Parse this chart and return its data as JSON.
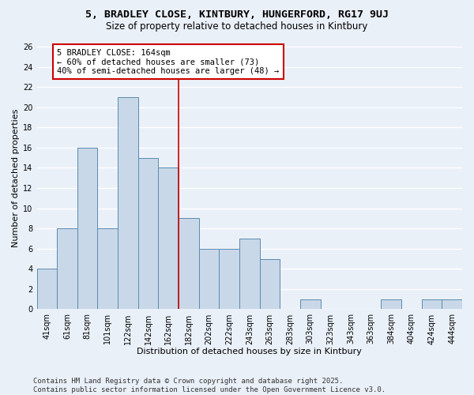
{
  "title1": "5, BRADLEY CLOSE, KINTBURY, HUNGERFORD, RG17 9UJ",
  "title2": "Size of property relative to detached houses in Kintbury",
  "xlabel": "Distribution of detached houses by size in Kintbury",
  "ylabel": "Number of detached properties",
  "bar_color": "#c8d8e8",
  "bar_edge_color": "#5a8ab0",
  "categories": [
    "41sqm",
    "61sqm",
    "81sqm",
    "101sqm",
    "122sqm",
    "142sqm",
    "162sqm",
    "182sqm",
    "202sqm",
    "222sqm",
    "243sqm",
    "263sqm",
    "283sqm",
    "303sqm",
    "323sqm",
    "343sqm",
    "363sqm",
    "384sqm",
    "404sqm",
    "424sqm",
    "444sqm"
  ],
  "values": [
    4,
    8,
    16,
    8,
    21,
    15,
    14,
    9,
    6,
    6,
    7,
    5,
    0,
    1,
    0,
    0,
    0,
    1,
    0,
    1,
    1
  ],
  "vline_x": 6.5,
  "vline_color": "#cc0000",
  "annotation_text": "5 BRADLEY CLOSE: 164sqm\n← 60% of detached houses are smaller (73)\n40% of semi-detached houses are larger (48) →",
  "annotation_box_color": "#ffffff",
  "annotation_box_edge_color": "#cc0000",
  "ylim": [
    0,
    26
  ],
  "yticks": [
    0,
    2,
    4,
    6,
    8,
    10,
    12,
    14,
    16,
    18,
    20,
    22,
    24,
    26
  ],
  "background_color": "#eaf0f8",
  "grid_color": "#ffffff",
  "footer": "Contains HM Land Registry data © Crown copyright and database right 2025.\nContains public sector information licensed under the Open Government Licence v3.0.",
  "title_fontsize": 9.5,
  "subtitle_fontsize": 8.5,
  "axis_label_fontsize": 8,
  "tick_fontsize": 7,
  "ann_fontsize": 7.5,
  "footer_fontsize": 6.5
}
